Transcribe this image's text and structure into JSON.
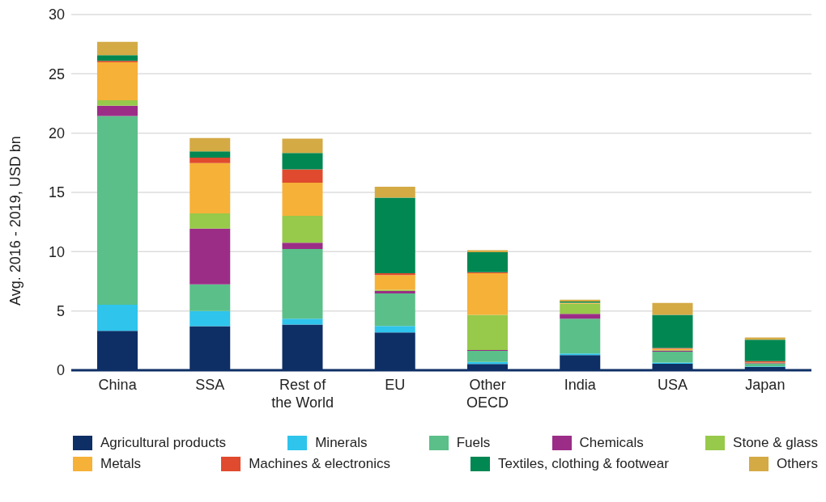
{
  "chart_data": {
    "type": "bar",
    "stacked": true,
    "ylabel": "Avg. 2016 - 2019, USD bn",
    "categories": [
      "China",
      "SSA",
      "Rest of the World",
      "EU",
      "Other OECD",
      "India",
      "USA",
      "Japan"
    ],
    "series": [
      {
        "name": "Agricultural products",
        "color": "#0e2f66",
        "values": [
          3.32,
          3.72,
          3.85,
          3.19,
          0.53,
          1.28,
          0.55,
          0.28
        ]
      },
      {
        "name": "Minerals",
        "color": "#2ec4ec",
        "values": [
          2.21,
          1.28,
          0.49,
          0.55,
          0.17,
          0.13,
          0.1,
          0.05
        ]
      },
      {
        "name": "Fuels",
        "color": "#5bbf89",
        "values": [
          15.92,
          2.24,
          5.89,
          2.74,
          0.93,
          2.94,
          0.91,
          0.22
        ]
      },
      {
        "name": "Chemicals",
        "color": "#9b2d87",
        "values": [
          0.87,
          4.71,
          0.53,
          0.2,
          0.08,
          0.4,
          0.1,
          0.05
        ]
      },
      {
        "name": "Stone & glass",
        "color": "#97c94a",
        "values": [
          0.46,
          1.27,
          2.26,
          0.1,
          2.96,
          0.85,
          0.05,
          0.05
        ]
      },
      {
        "name": "Metals",
        "color": "#f6b138",
        "values": [
          3.19,
          4.25,
          2.79,
          1.24,
          3.52,
          0.1,
          0.1,
          null
        ]
      },
      {
        "name": "Machines & electronics",
        "color": "#e04a2e",
        "values": [
          0.13,
          0.46,
          1.13,
          0.17,
          0.08,
          null,
          0.07,
          0.12
        ]
      },
      {
        "name": "Textiles, clothing & footwear",
        "color": "#008752",
        "values": [
          0.47,
          0.53,
          1.39,
          6.36,
          1.68,
          0.1,
          2.79,
          1.81
        ]
      },
      {
        "name": "Others",
        "color": "#d4aa45",
        "values": [
          1.13,
          1.13,
          1.2,
          0.93,
          0.18,
          0.15,
          1.01,
          0.18
        ]
      }
    ],
    "ylim": [
      0,
      30
    ],
    "yticks": [
      0,
      5,
      10,
      15,
      20,
      25,
      30
    ],
    "grid": "y",
    "legend": "bottom"
  }
}
